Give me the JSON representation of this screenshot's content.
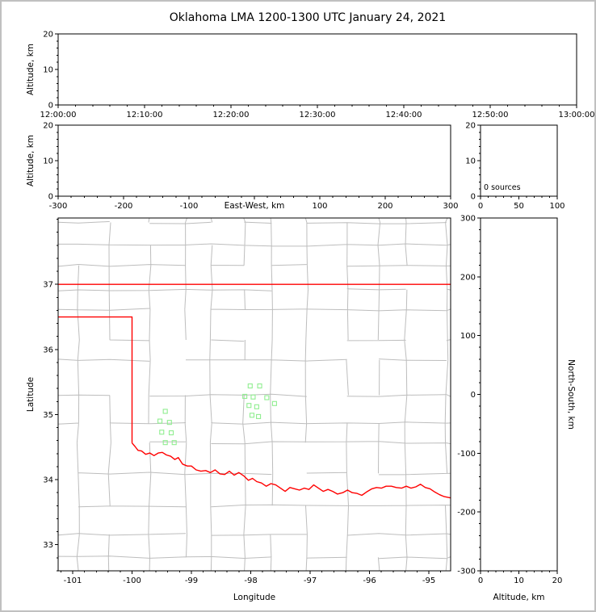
{
  "title": "Oklahoma LMA 1200-1300 UTC January 24, 2021",
  "colors": {
    "background": "#ffffff",
    "frame": "#000000",
    "window_border": "#c0c0c0",
    "state_border": "#ff0000",
    "county_lines": "#bdbdbd",
    "station_marker": "#90EE90"
  },
  "chart_data": [
    {
      "id": "time-altitude",
      "type": "scatter",
      "description": "Altitude vs time panel, no lightning sources plotted",
      "x": {
        "label": null,
        "min": 0,
        "max": 3600,
        "ticks": [
          0,
          600,
          1200,
          1800,
          2400,
          3000,
          3600
        ],
        "tick_labels": [
          "12:00:00",
          "12:10:00",
          "12:20:00",
          "12:30:00",
          "12:40:00",
          "12:50:00",
          "13:00:00"
        ],
        "minor_step": 120
      },
      "y": {
        "label": "Altitude, km",
        "min": 0,
        "max": 20,
        "ticks": [
          0,
          10,
          20
        ],
        "tick_labels": [
          "0",
          "10",
          "20"
        ],
        "minor_step": 2
      },
      "points": []
    },
    {
      "id": "eastwest-altitude",
      "type": "scatter",
      "description": "Altitude vs east-west distance panel, no sources plotted",
      "x": {
        "label": "East-West, km",
        "label_inline": true,
        "min": -300,
        "max": 300,
        "ticks": [
          -300,
          -200,
          -100,
          0,
          100,
          200,
          300
        ],
        "tick_labels": [
          "-300",
          "-200",
          "-100",
          "",
          "100",
          "200",
          "300"
        ],
        "minor_step": 20
      },
      "y": {
        "label": "Altitude, km",
        "min": 0,
        "max": 20,
        "ticks": [
          0,
          10,
          20
        ],
        "tick_labels": [
          "0",
          "10",
          "20"
        ],
        "minor_step": 2
      },
      "points": []
    },
    {
      "id": "altitude-histogram",
      "type": "line",
      "description": "Source-count vs altitude histogram panel",
      "annotation": "0 sources",
      "x": {
        "label": null,
        "min": 0,
        "max": 100,
        "ticks": [
          0,
          50,
          100
        ],
        "tick_labels": [
          "0",
          "50",
          "100"
        ],
        "minor_step": 10
      },
      "y": {
        "label": null,
        "min": 0,
        "max": 20,
        "ticks": [
          0,
          10,
          20
        ],
        "tick_labels": [
          "0",
          "10",
          "20"
        ],
        "minor_step": 2
      },
      "points": []
    },
    {
      "id": "plan-view-map",
      "type": "map",
      "description": "Plan view of Oklahoma with county outlines, state border and LMA stations",
      "x": {
        "label": "Longitude",
        "min": -101.245,
        "max": -94.633,
        "ticks": [
          -101,
          -100,
          -99,
          -98,
          -97,
          -96,
          -95
        ],
        "tick_labels": [
          "-101",
          "-100",
          "-99",
          "-98",
          "-97",
          "-96",
          "-95"
        ],
        "minor_step": 0.2
      },
      "y": {
        "label": "Latitude",
        "min": 32.6,
        "max": 38.02,
        "ticks": [
          33,
          34,
          35,
          36,
          37
        ],
        "tick_labels": [
          "33",
          "34",
          "35",
          "36",
          "37"
        ],
        "minor_step": 0.2
      },
      "county_lines": {
        "color": "#bdbdbd",
        "seed": 42,
        "col_step": 0.52,
        "row_step": 0.42
      },
      "state_border": {
        "color": "#ff0000",
        "polylines": [
          [
            [
              -101.245,
              37.0
            ],
            [
              -94.633,
              37.0
            ]
          ],
          [
            [
              -101.245,
              36.5
            ],
            [
              -100.0,
              36.5
            ],
            [
              -100.0,
              34.563
            ]
          ],
          [
            [
              -94.618,
              37.0
            ],
            [
              -94.618,
              36.5
            ]
          ],
          [
            [
              -100.0,
              34.563
            ],
            [
              -99.95,
              34.51
            ],
            [
              -99.9,
              34.45
            ],
            [
              -99.84,
              34.44
            ],
            [
              -99.77,
              34.39
            ],
            [
              -99.7,
              34.41
            ],
            [
              -99.63,
              34.37
            ],
            [
              -99.56,
              34.41
            ],
            [
              -99.49,
              34.42
            ],
            [
              -99.42,
              34.38
            ],
            [
              -99.35,
              34.36
            ],
            [
              -99.28,
              34.31
            ],
            [
              -99.22,
              34.34
            ],
            [
              -99.15,
              34.24
            ],
            [
              -99.07,
              34.21
            ],
            [
              -99.0,
              34.21
            ],
            [
              -98.92,
              34.15
            ],
            [
              -98.84,
              34.13
            ],
            [
              -98.76,
              34.14
            ],
            [
              -98.68,
              34.11
            ],
            [
              -98.6,
              34.15
            ],
            [
              -98.52,
              34.09
            ],
            [
              -98.44,
              34.08
            ],
            [
              -98.36,
              34.13
            ],
            [
              -98.28,
              34.07
            ],
            [
              -98.2,
              34.11
            ],
            [
              -98.12,
              34.06
            ],
            [
              -98.04,
              33.99
            ],
            [
              -97.97,
              34.02
            ],
            [
              -97.9,
              33.97
            ],
            [
              -97.82,
              33.95
            ],
            [
              -97.74,
              33.9
            ],
            [
              -97.66,
              33.94
            ],
            [
              -97.58,
              33.92
            ],
            [
              -97.5,
              33.87
            ],
            [
              -97.42,
              33.82
            ],
            [
              -97.34,
              33.88
            ],
            [
              -97.26,
              33.86
            ],
            [
              -97.18,
              33.84
            ],
            [
              -97.1,
              33.87
            ],
            [
              -97.02,
              33.85
            ],
            [
              -96.94,
              33.92
            ],
            [
              -96.86,
              33.87
            ],
            [
              -96.78,
              33.82
            ],
            [
              -96.7,
              33.85
            ],
            [
              -96.62,
              33.82
            ],
            [
              -96.54,
              33.78
            ],
            [
              -96.45,
              33.8
            ],
            [
              -96.37,
              33.84
            ],
            [
              -96.29,
              33.8
            ],
            [
              -96.21,
              33.79
            ],
            [
              -96.13,
              33.76
            ],
            [
              -96.05,
              33.81
            ],
            [
              -95.96,
              33.86
            ],
            [
              -95.88,
              33.88
            ],
            [
              -95.8,
              33.87
            ],
            [
              -95.72,
              33.9
            ],
            [
              -95.63,
              33.9
            ],
            [
              -95.55,
              33.88
            ],
            [
              -95.46,
              33.87
            ],
            [
              -95.38,
              33.9
            ],
            [
              -95.3,
              33.87
            ],
            [
              -95.22,
              33.89
            ],
            [
              -95.14,
              33.93
            ],
            [
              -95.06,
              33.88
            ],
            [
              -94.98,
              33.86
            ],
            [
              -94.9,
              33.81
            ],
            [
              -94.82,
              33.77
            ],
            [
              -94.74,
              33.74
            ],
            [
              -94.633,
              33.72
            ]
          ]
        ]
      },
      "stations": {
        "marker": "open-square",
        "color": "#90EE90",
        "size": 5,
        "points": [
          [
            -98.01,
            35.44
          ],
          [
            -97.85,
            35.44
          ],
          [
            -98.1,
            35.28
          ],
          [
            -97.96,
            35.27
          ],
          [
            -97.73,
            35.26
          ],
          [
            -98.03,
            35.14
          ],
          [
            -97.9,
            35.12
          ],
          [
            -97.6,
            35.17
          ],
          [
            -97.98,
            34.99
          ],
          [
            -97.87,
            34.97
          ],
          [
            -99.44,
            35.05
          ],
          [
            -99.53,
            34.9
          ],
          [
            -99.37,
            34.88
          ],
          [
            -99.5,
            34.73
          ],
          [
            -99.34,
            34.72
          ],
          [
            -99.44,
            34.57
          ],
          [
            -99.29,
            34.57
          ]
        ]
      },
      "points": []
    },
    {
      "id": "northsouth-altitude",
      "type": "scatter",
      "description": "North-south distance vs altitude panel, no sources plotted",
      "x": {
        "label": "Altitude, km",
        "min": 0,
        "max": 20,
        "ticks": [
          0,
          10,
          20
        ],
        "tick_labels": [
          "0",
          "10",
          "20"
        ],
        "minor_step": 2
      },
      "y": {
        "label": "North-South, km",
        "label_side": "right",
        "min": -300,
        "max": 300,
        "ticks": [
          -300,
          -200,
          -100,
          0,
          100,
          200,
          300
        ],
        "tick_labels": [
          "-300",
          "-200",
          "-100",
          "0",
          "100",
          "200",
          "300"
        ],
        "minor_step": 20
      },
      "points": []
    }
  ]
}
